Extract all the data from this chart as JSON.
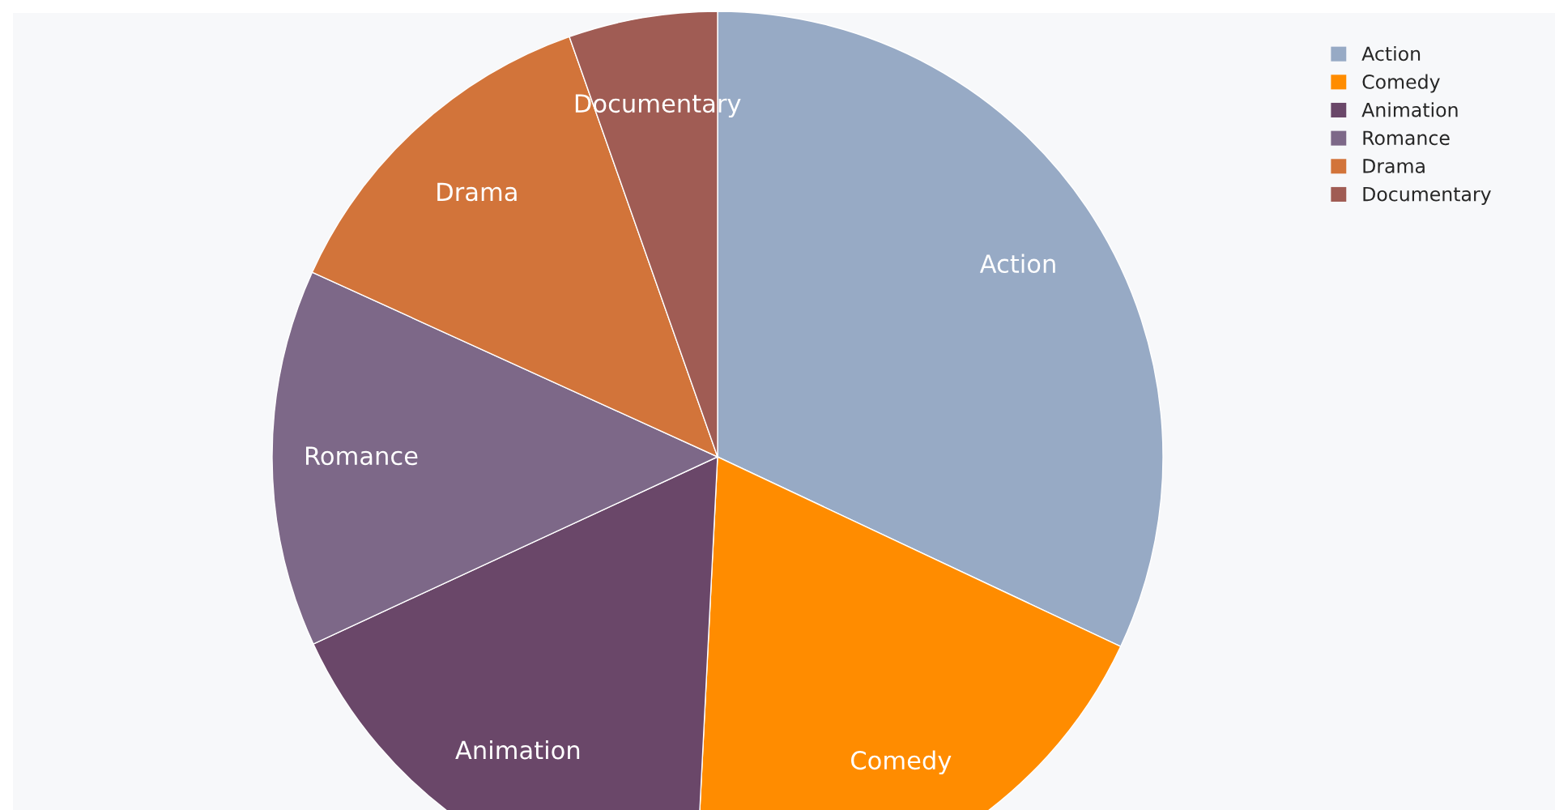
{
  "chart_data": {
    "type": "pie",
    "categories": [
      "Action",
      "Comedy",
      "Animation",
      "Romance",
      "Drama",
      "Documentary"
    ],
    "values": [
      32.0,
      18.8,
      17.3,
      13.7,
      12.8,
      5.4
    ],
    "colors": [
      "#97aac5",
      "#ff8c00",
      "#6a4769",
      "#7d6888",
      "#d2743a",
      "#a05c54"
    ],
    "legend": "top right"
  }
}
